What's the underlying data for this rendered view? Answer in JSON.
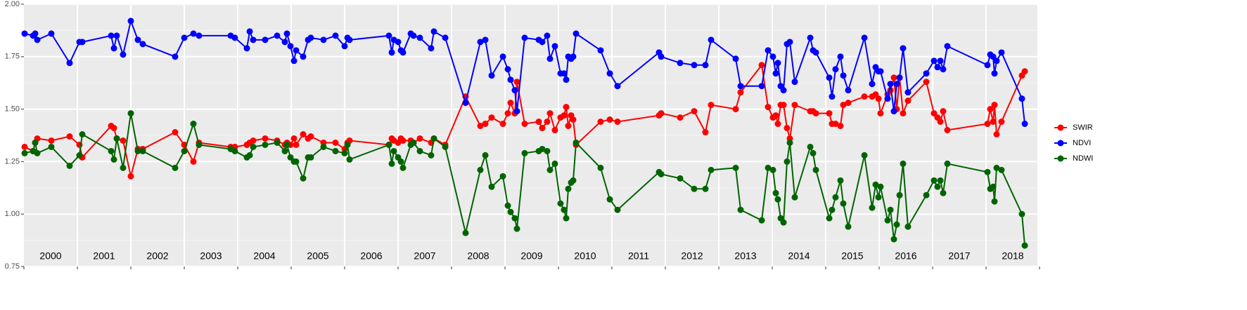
{
  "chart_data": {
    "type": "line",
    "x": [
      2000.013,
      2000.171,
      2000.211,
      2000.25,
      2000.513,
      2000.855,
      2001.039,
      2001.092,
      2001.632,
      2001.684,
      2001.737,
      2001.855,
      2002.0,
      2002.132,
      2002.224,
      2002.829,
      2003.0,
      2003.171,
      2003.276,
      2003.868,
      2003.947,
      2004.171,
      2004.224,
      2004.289,
      2004.513,
      2004.737,
      2004.882,
      2004.921,
      2004.987,
      2005.053,
      2005.092,
      2005.224,
      2005.316,
      2005.368,
      2005.605,
      2005.829,
      2006.0,
      2006.053,
      2006.092,
      2006.829,
      2006.882,
      2006.921,
      2007.0,
      2007.053,
      2007.092,
      2007.237,
      2007.289,
      2007.408,
      2007.618,
      2007.671,
      2007.882,
      2008.263,
      2008.539,
      2008.632,
      2008.75,
      2008.961,
      2009.053,
      2009.105,
      2009.184,
      2009.224,
      2009.368,
      2009.632,
      2009.697,
      2009.789,
      2009.842,
      2009.934,
      2010.039,
      2010.105,
      2010.145,
      2010.184,
      2010.237,
      2010.276,
      2010.329,
      2010.789,
      2010.961,
      2011.105,
      2011.882,
      2011.921,
      2012.276,
      2012.539,
      2012.75,
      2012.855,
      2013.316,
      2013.408,
      2013.803,
      2013.921,
      2014.013,
      2014.066,
      2014.105,
      2014.158,
      2014.211,
      2014.276,
      2014.329,
      2014.421,
      2014.711,
      2014.763,
      2014.816,
      2015.066,
      2015.118,
      2015.184,
      2015.276,
      2015.329,
      2015.421,
      2015.724,
      2015.868,
      2015.934,
      2015.987,
      2016.026,
      2016.158,
      2016.211,
      2016.276,
      2016.329,
      2016.382,
      2016.447,
      2016.539,
      2016.882,
      2017.026,
      2017.092,
      2017.145,
      2017.197,
      2017.276,
      2018.026,
      2018.079,
      2018.132,
      2018.158,
      2018.197,
      2018.289,
      2018.671,
      2018.724
    ],
    "series": [
      {
        "name": "SWIR",
        "color": "#ff0000",
        "values": [
          1.32,
          1.3,
          1.34,
          1.36,
          1.35,
          1.37,
          1.33,
          1.27,
          1.42,
          1.41,
          1.36,
          1.35,
          1.18,
          1.31,
          1.31,
          1.39,
          1.33,
          1.25,
          1.34,
          1.32,
          1.32,
          1.33,
          1.34,
          1.35,
          1.36,
          1.35,
          1.33,
          1.34,
          1.33,
          1.36,
          1.33,
          1.38,
          1.36,
          1.37,
          1.34,
          1.34,
          1.31,
          1.34,
          1.35,
          1.33,
          1.36,
          1.35,
          1.34,
          1.36,
          1.35,
          1.35,
          1.34,
          1.36,
          1.34,
          1.36,
          1.33,
          1.56,
          1.42,
          1.43,
          1.46,
          1.43,
          1.48,
          1.53,
          1.48,
          1.63,
          1.43,
          1.44,
          1.41,
          1.44,
          1.48,
          1.4,
          1.46,
          1.47,
          1.51,
          1.42,
          1.47,
          1.45,
          1.33,
          1.44,
          1.45,
          1.44,
          1.47,
          1.48,
          1.46,
          1.49,
          1.39,
          1.52,
          1.5,
          1.58,
          1.71,
          1.51,
          1.46,
          1.47,
          1.43,
          1.52,
          1.52,
          1.41,
          1.36,
          1.52,
          1.49,
          1.49,
          1.48,
          1.48,
          1.43,
          1.43,
          1.42,
          1.52,
          1.53,
          1.56,
          1.56,
          1.57,
          1.55,
          1.48,
          1.57,
          1.59,
          1.65,
          1.5,
          1.65,
          1.48,
          1.54,
          1.63,
          1.48,
          1.46,
          1.44,
          1.49,
          1.4,
          1.43,
          1.5,
          1.44,
          1.52,
          1.38,
          1.44,
          1.66,
          1.68
        ]
      },
      {
        "name": "NDVI",
        "color": "#0000ff",
        "values": [
          1.86,
          1.85,
          1.86,
          1.83,
          1.86,
          1.72,
          1.82,
          1.82,
          1.85,
          1.79,
          1.85,
          1.76,
          1.92,
          1.83,
          1.81,
          1.75,
          1.84,
          1.86,
          1.85,
          1.85,
          1.84,
          1.79,
          1.87,
          1.83,
          1.83,
          1.85,
          1.82,
          1.86,
          1.8,
          1.73,
          1.78,
          1.75,
          1.83,
          1.84,
          1.83,
          1.85,
          1.8,
          1.84,
          1.83,
          1.85,
          1.77,
          1.83,
          1.82,
          1.78,
          1.77,
          1.86,
          1.85,
          1.84,
          1.79,
          1.87,
          1.84,
          1.53,
          1.82,
          1.83,
          1.66,
          1.75,
          1.69,
          1.64,
          1.59,
          1.49,
          1.84,
          1.83,
          1.82,
          1.85,
          1.74,
          1.8,
          1.67,
          1.67,
          1.64,
          1.75,
          1.74,
          1.75,
          1.86,
          1.78,
          1.67,
          1.61,
          1.77,
          1.75,
          1.72,
          1.71,
          1.71,
          1.83,
          1.74,
          1.61,
          1.61,
          1.78,
          1.75,
          1.67,
          1.72,
          1.61,
          1.59,
          1.81,
          1.82,
          1.63,
          1.84,
          1.78,
          1.77,
          1.65,
          1.56,
          1.69,
          1.75,
          1.66,
          1.59,
          1.84,
          1.62,
          1.7,
          1.68,
          1.68,
          1.55,
          1.62,
          1.49,
          1.62,
          1.65,
          1.79,
          1.58,
          1.67,
          1.73,
          1.7,
          1.73,
          1.69,
          1.8,
          1.71,
          1.76,
          1.75,
          1.67,
          1.73,
          1.77,
          1.55,
          1.43
        ]
      },
      {
        "name": "NDWI",
        "color": "#006400",
        "values": [
          1.29,
          1.3,
          1.34,
          1.29,
          1.32,
          1.23,
          1.28,
          1.38,
          1.3,
          1.26,
          1.36,
          1.22,
          1.48,
          1.3,
          1.3,
          1.22,
          1.3,
          1.43,
          1.33,
          1.31,
          1.3,
          1.27,
          1.28,
          1.32,
          1.33,
          1.34,
          1.3,
          1.33,
          1.27,
          1.25,
          1.25,
          1.17,
          1.27,
          1.27,
          1.32,
          1.3,
          1.29,
          1.33,
          1.26,
          1.33,
          1.24,
          1.3,
          1.27,
          1.25,
          1.22,
          1.33,
          1.34,
          1.3,
          1.28,
          1.36,
          1.32,
          0.91,
          1.21,
          1.28,
          1.13,
          1.18,
          1.04,
          1.01,
          0.98,
          0.93,
          1.29,
          1.3,
          1.31,
          1.3,
          1.21,
          1.24,
          1.05,
          1.02,
          0.98,
          1.12,
          1.15,
          1.16,
          1.34,
          1.22,
          1.07,
          1.02,
          1.2,
          1.19,
          1.17,
          1.12,
          1.12,
          1.21,
          1.22,
          1.02,
          0.97,
          1.22,
          1.21,
          1.1,
          1.07,
          0.98,
          0.96,
          1.25,
          1.34,
          1.08,
          1.32,
          1.29,
          1.21,
          0.98,
          1.02,
          1.08,
          1.16,
          1.05,
          0.94,
          1.28,
          1.03,
          1.14,
          1.08,
          1.13,
          0.97,
          1.02,
          0.88,
          0.95,
          1.09,
          1.24,
          0.94,
          1.09,
          1.16,
          1.13,
          1.16,
          1.1,
          1.24,
          1.2,
          1.12,
          1.13,
          1.06,
          1.22,
          1.21,
          1.0,
          0.85
        ]
      }
    ],
    "xlim": [
      2000,
      2019
    ],
    "xticks": [
      2000,
      2001,
      2002,
      2003,
      2004,
      2005,
      2006,
      2007,
      2008,
      2009,
      2010,
      2011,
      2012,
      2013,
      2014,
      2015,
      2016,
      2017,
      2018,
      2019
    ],
    "annotations": [
      "2000",
      "2001",
      "2002",
      "2003",
      "2004",
      "2005",
      "2006",
      "2007",
      "2008",
      "2009",
      "2010",
      "2011",
      "2012",
      "2013",
      "2014",
      "2015",
      "2016",
      "2017",
      "2018"
    ],
    "ylim": [
      0.75,
      2.0
    ],
    "yticks": [
      {
        "value": 0.75,
        "label": "0.75"
      },
      {
        "value": 1,
        "label": "1.00"
      },
      {
        "value": 1.25,
        "label": "1.25"
      },
      {
        "value": 1.5,
        "label": "1.50"
      },
      {
        "value": 1.75,
        "label": "1.75"
      },
      {
        "value": 2,
        "label": "2.00"
      }
    ],
    "grid": true,
    "legend": "right"
  }
}
